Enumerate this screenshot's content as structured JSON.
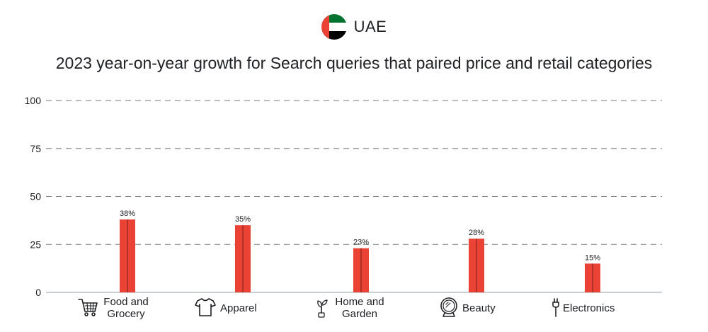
{
  "header": {
    "country": "UAE",
    "flag_icon": "uae-flag-icon"
  },
  "chart_data": {
    "type": "bar",
    "title": "2023 year-on-year growth for Search queries that paired price and retail categories",
    "categories": [
      "Food and Grocery",
      "Apparel",
      "Home and Garden",
      "Beauty",
      "Electronics"
    ],
    "category_icons": [
      "shopping-cart-icon",
      "tshirt-icon",
      "plant-icon",
      "mirror-icon",
      "plug-icon"
    ],
    "values": [
      38,
      35,
      23,
      28,
      15
    ],
    "data_labels": [
      "38%",
      "35%",
      "23%",
      "28%",
      "15%"
    ],
    "yticks": [
      0,
      25,
      50,
      75,
      100
    ],
    "ylim": [
      0,
      100
    ],
    "grid": true,
    "bar_color": "#ea4335",
    "xlabel": "",
    "ylabel": ""
  }
}
